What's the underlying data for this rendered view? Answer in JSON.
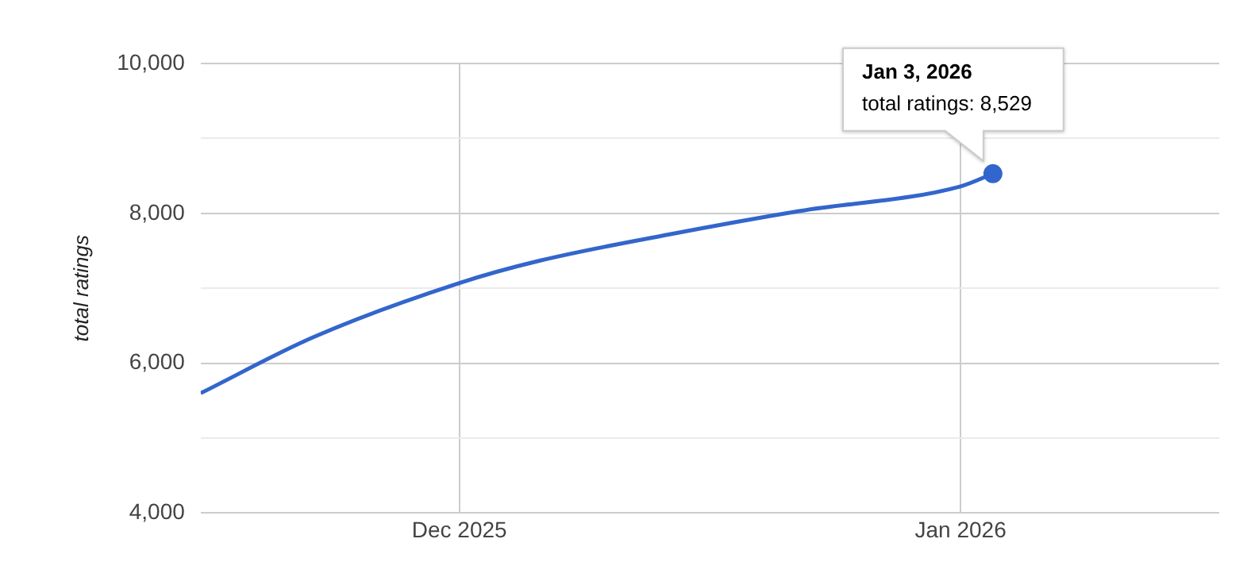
{
  "chart_data": {
    "type": "line",
    "ylabel": "total ratings",
    "x": [
      "2025-11-15",
      "2025-11-22",
      "2025-12-01",
      "2025-12-06",
      "2025-12-14",
      "2025-12-22",
      "2026-01-01",
      "2026-01-03"
    ],
    "series": [
      {
        "color": "#3366cc",
        "values": [
          5600,
          6350,
          7070,
          7370,
          7720,
          8030,
          8360,
          8529
        ]
      }
    ],
    "xlim": [
      "2025-11-15",
      "2026-01-17"
    ],
    "xticks": [
      {
        "value": "2025-12-01",
        "label": "Dec 2025"
      },
      {
        "value": "2026-01-01",
        "label": "Jan 2026"
      }
    ],
    "ylim": [
      4000,
      10000
    ],
    "yticks": [
      {
        "value": 4000,
        "label": "4,000"
      },
      {
        "value": 5000,
        "label": null
      },
      {
        "value": 6000,
        "label": "6,000"
      },
      {
        "value": 7000,
        "label": null
      },
      {
        "value": 8000,
        "label": "8,000"
      },
      {
        "value": 9000,
        "label": null
      },
      {
        "value": 10000,
        "label": "10,000"
      }
    ],
    "grid": true,
    "legend": false,
    "marker": "none",
    "line_style": "solid",
    "annotations": [
      {
        "text": "Jan 3, 2026\ntotal ratings: 8,529",
        "x": "2026-01-03",
        "y": 8529
      }
    ]
  }
}
